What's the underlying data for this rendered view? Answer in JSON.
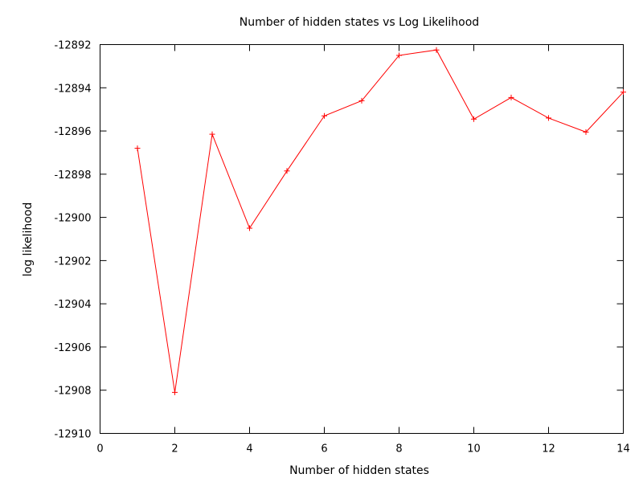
{
  "chart_data": {
    "type": "line",
    "title": "Number of hidden states vs Log Likelihood",
    "xlabel": "Number of hidden states",
    "ylabel": "log likelihood",
    "xlim": [
      0,
      14
    ],
    "ylim": [
      -12910,
      -12892
    ],
    "x_ticks": [
      0,
      2,
      4,
      6,
      8,
      10,
      12,
      14
    ],
    "x_tick_labels": [
      "0",
      "2",
      "4",
      "6",
      "8",
      "10",
      "12",
      "14"
    ],
    "y_ticks": [
      -12892,
      -12894,
      -12896,
      -12898,
      -12900,
      -12902,
      -12904,
      -12906,
      -12908,
      -12910
    ],
    "y_tick_labels": [
      "-12892",
      "-12894",
      "-12896",
      "-12898",
      "-12900",
      "-12902",
      "-12904",
      "-12906",
      "-12908",
      "-12910"
    ],
    "grid": false,
    "series": [
      {
        "color": "#ff0000",
        "marker": "plus",
        "x": [
          1,
          2,
          3,
          4,
          5,
          6,
          7,
          8,
          9,
          10,
          11,
          12,
          13,
          14
        ],
        "y": [
          -12896.8,
          -12908.1,
          -12896.15,
          -12900.5,
          -12897.85,
          -12895.3,
          -12894.6,
          -12892.5,
          -12892.25,
          -12895.45,
          -12894.45,
          -12895.4,
          -12896.05,
          -12894.2
        ]
      }
    ]
  }
}
